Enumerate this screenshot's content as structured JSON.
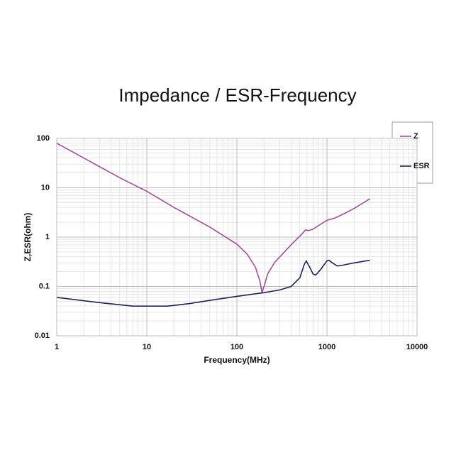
{
  "chart_data": {
    "type": "line",
    "title": "Impedance / ESR-Frequency",
    "x_label": "Frequency(MHz)",
    "y_label": "Z,ESR(ohm)",
    "log_x": true,
    "log_y": true,
    "grid": true,
    "xlim": [
      1,
      10000
    ],
    "xticks": [
      1,
      10,
      100,
      1000,
      10000
    ],
    "ylim": [
      0.01,
      100
    ],
    "yticks": [
      0.01,
      0.1,
      1,
      10,
      100
    ],
    "series": [
      {
        "name": "Z",
        "color": "#a0509a",
        "x": [
          1,
          2,
          5,
          10,
          20,
          50,
          100,
          130,
          160,
          180,
          190,
          200,
          220,
          260,
          300,
          400,
          500,
          580,
          620,
          700,
          800,
          1000,
          1200,
          1500,
          2000,
          3000
        ],
        "values": [
          80,
          40,
          16,
          8.5,
          4,
          1.6,
          0.72,
          0.45,
          0.25,
          0.13,
          0.075,
          0.1,
          0.18,
          0.3,
          0.4,
          0.7,
          1.05,
          1.4,
          1.35,
          1.45,
          1.7,
          2.2,
          2.4,
          2.9,
          3.8,
          6
        ]
      },
      {
        "name": "ESR",
        "color": "#1c2550",
        "x": [
          1,
          3,
          7,
          10,
          17,
          30,
          60,
          100,
          200,
          300,
          400,
          500,
          560,
          590,
          640,
          700,
          750,
          850,
          1000,
          1050,
          1150,
          1300,
          1500,
          2000,
          3000
        ],
        "values": [
          0.06,
          0.047,
          0.04,
          0.04,
          0.04,
          0.045,
          0.055,
          0.063,
          0.075,
          0.085,
          0.1,
          0.15,
          0.28,
          0.33,
          0.25,
          0.18,
          0.17,
          0.22,
          0.33,
          0.34,
          0.3,
          0.26,
          0.27,
          0.3,
          0.34
        ]
      }
    ]
  }
}
